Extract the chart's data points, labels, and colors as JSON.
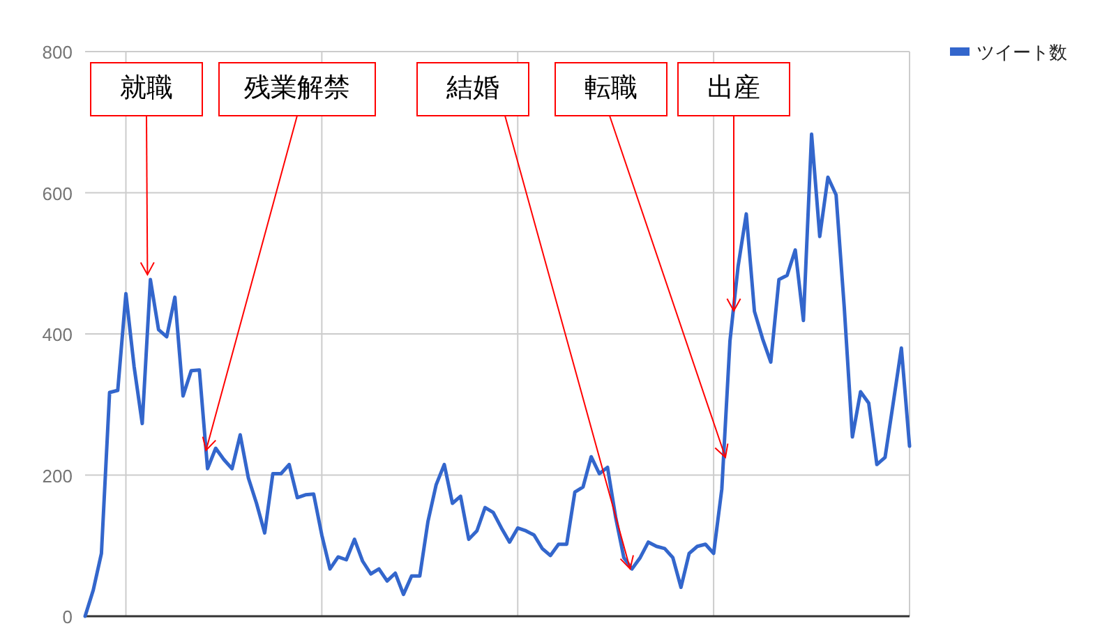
{
  "chart_data": {
    "type": "line",
    "categories": [
      null,
      null,
      null,
      null,
      null,
      null,
      null,
      null,
      null,
      null,
      null,
      null,
      null,
      null,
      null,
      null,
      null,
      null,
      null,
      null,
      null,
      null,
      null,
      null,
      null,
      null,
      null,
      null,
      null,
      null,
      null,
      null,
      null,
      null,
      null,
      null,
      null,
      null,
      null,
      null,
      null,
      null,
      null,
      null,
      null,
      null,
      null,
      null,
      null,
      null,
      null,
      null,
      null,
      null,
      null,
      null,
      null,
      null,
      null,
      null,
      null,
      null,
      null,
      null,
      null,
      null,
      null,
      null,
      null,
      null,
      null,
      null,
      null,
      null,
      null,
      null,
      null,
      null,
      null,
      null,
      null,
      null,
      null,
      null,
      null,
      null,
      null,
      null,
      null,
      null,
      null,
      null,
      null,
      null,
      null,
      null,
      null,
      null,
      null,
      null,
      null,
      null
    ],
    "series": [
      {
        "name": "ツイート数",
        "color": "#3366cc",
        "values": [
          0,
          37,
          89,
          317,
          320,
          457,
          354,
          273,
          477,
          406,
          396,
          452,
          312,
          348,
          349,
          209,
          238,
          222,
          209,
          257,
          196,
          160,
          118,
          202,
          202,
          215,
          168,
          172,
          173,
          115,
          67,
          84,
          80,
          109,
          78,
          60,
          67,
          50,
          61,
          31,
          57,
          57,
          134,
          186,
          215,
          160,
          170,
          109,
          121,
          154,
          147,
          125,
          105,
          125,
          121,
          115,
          96,
          86,
          102,
          102,
          176,
          183,
          226,
          202,
          211,
          140,
          83,
          67,
          83,
          105,
          99,
          96,
          83,
          41,
          89,
          99,
          102,
          89,
          180,
          390,
          496,
          570,
          432,
          393,
          360,
          477,
          483,
          519,
          419,
          683,
          538,
          622,
          597,
          438,
          254,
          318,
          302,
          215,
          225,
          302,
          380,
          241
        ]
      }
    ],
    "ylim": [
      0,
      800
    ],
    "yticks": [
      0,
      200,
      400,
      600,
      800
    ],
    "grid": true,
    "legend": "top right",
    "annotations": [
      "就職",
      "残業解禁",
      "結婚",
      "転職",
      "出産"
    ]
  }
}
